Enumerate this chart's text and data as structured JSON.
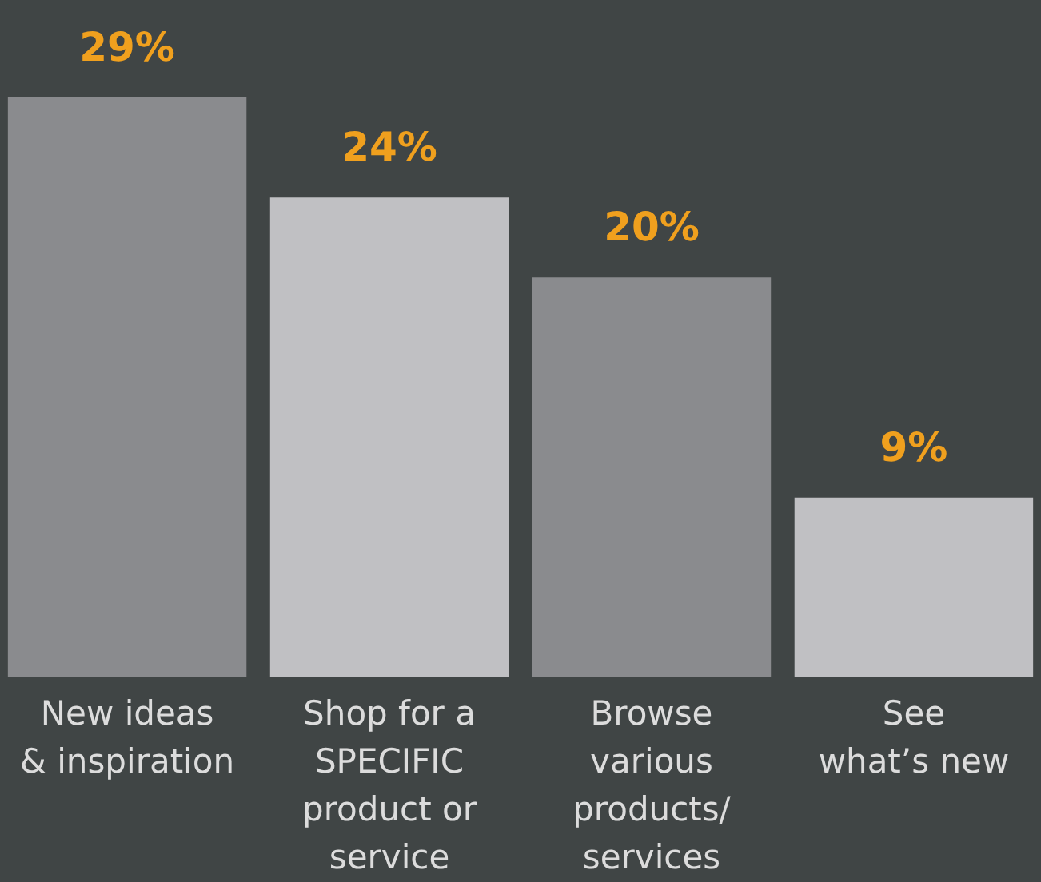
{
  "chart_data": {
    "type": "bar",
    "categories": [
      "New ideas\n& inspiration",
      "Shop for a\nSPECIFIC\nproduct or\nservice",
      "Browse\nvarious\nproducts/\nservices",
      "See\nwhat’s new"
    ],
    "values": [
      29,
      24,
      20,
      9
    ],
    "colors": [
      "#8a8b8e",
      "#c0c0c3",
      "#8a8b8e",
      "#c0c0c3"
    ],
    "value_labels": [
      "29%",
      "24%",
      "20%",
      "9%"
    ],
    "grid": false
  }
}
